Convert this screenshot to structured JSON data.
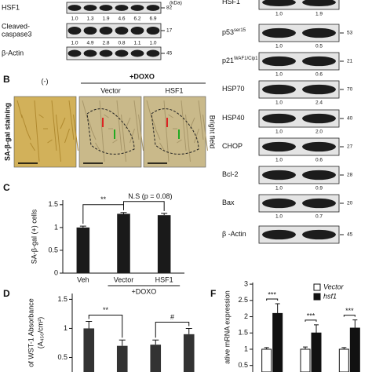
{
  "blots_left": {
    "kda_header": "(kDa)",
    "rows": [
      {
        "label_lines": [
          "HSF1"
        ],
        "kda": "82",
        "quant": [
          "1.0",
          "1.3",
          "1.9",
          "4.6",
          "6.2",
          "6.9"
        ]
      },
      {
        "label_lines": [
          "Cleaved-",
          "caspase3"
        ],
        "kda": "17",
        "quant": [
          "1.0",
          "4.9",
          "2.8",
          "0.8",
          "1.1",
          "1.0"
        ]
      },
      {
        "label_lines": [
          "β-Actin"
        ],
        "kda": "45"
      }
    ]
  },
  "blots_right": {
    "rows": [
      {
        "label": "HSF1",
        "quant": [
          "1.0",
          "1.9"
        ]
      },
      {
        "label": "p53",
        "sup": "ser15",
        "kda": "53",
        "quant": [
          "1.0",
          "0.5"
        ]
      },
      {
        "label": "p21",
        "sup": "WAF1/Cip1",
        "kda": "21",
        "quant": [
          "1.0",
          "0.6"
        ]
      },
      {
        "label": "HSP70",
        "kda": "70",
        "quant": [
          "1.0",
          "2.4"
        ]
      },
      {
        "label": "HSP40",
        "kda": "40",
        "quant": [
          "1.0",
          "2.0"
        ]
      },
      {
        "label": "CHOP",
        "kda": "27",
        "quant": [
          "1.0",
          "0.6"
        ]
      },
      {
        "label": "Bcl-2",
        "kda": "28",
        "quant": [
          "1.0",
          "0.9"
        ]
      },
      {
        "label": "Bax",
        "kda": "20",
        "quant": [
          "1.0",
          "0.7"
        ]
      },
      {
        "label": "β -Actin",
        "kda": "45"
      }
    ]
  },
  "panel_b": {
    "panel_label": "B",
    "neg": "(-)",
    "treatment": "+DOXO",
    "groups": [
      "Vector",
      "HSF1"
    ],
    "stain": "SA-β-gal staining",
    "field": "Bright field"
  },
  "chart_data": [
    {
      "type": "bar",
      "panel_label": "C",
      "y_label": "SA-β-gal (+) cells",
      "categories": [
        "Veh",
        "Vector",
        "HSF1"
      ],
      "values": [
        1.0,
        1.3,
        1.27
      ],
      "errors": [
        0.03,
        0.03,
        0.04
      ],
      "color": "#1a1a1a",
      "ylim": [
        0,
        1.6
      ],
      "yticks": [
        0,
        0.5,
        1,
        1.5
      ],
      "group_label": "+DOXO",
      "annotations": [
        "**",
        "N.S (p = 0.08)"
      ]
    },
    {
      "type": "bar",
      "panel_label": "D",
      "y_label": "of WST-1 Absorbance",
      "y_label2": "(A₄₅₀/cm²)",
      "categories": [
        null,
        null,
        null,
        null
      ],
      "values": [
        1.0,
        0.7,
        0.72,
        0.9
      ],
      "errors": [
        0.12,
        0.1,
        0.08,
        0.1
      ],
      "color": "#333333",
      "ylim": [
        0.25,
        1.6
      ],
      "yticks": [
        0.5,
        1,
        1.5
      ],
      "annotations": [
        "**",
        "#"
      ]
    },
    {
      "type": "grouped_bar",
      "panel_label": "F",
      "y_label": "ative mRNA expression",
      "categories": [
        null,
        null,
        null
      ],
      "series": [
        {
          "name": "Vector",
          "color": "#ffffff",
          "values": [
            1.0,
            1.0,
            1.0
          ],
          "errors": [
            0.05,
            0.07,
            0.05
          ]
        },
        {
          "name": "hsf1",
          "color": "#111111",
          "values": [
            2.1,
            1.5,
            1.65
          ],
          "errors": [
            0.3,
            0.25,
            0.25
          ]
        }
      ],
      "ylim": [
        0.3,
        3.05
      ],
      "yticks": [
        0.5,
        1,
        1.5,
        2,
        2.5,
        3
      ],
      "annotations": [
        "***",
        "***",
        "***"
      ]
    }
  ]
}
